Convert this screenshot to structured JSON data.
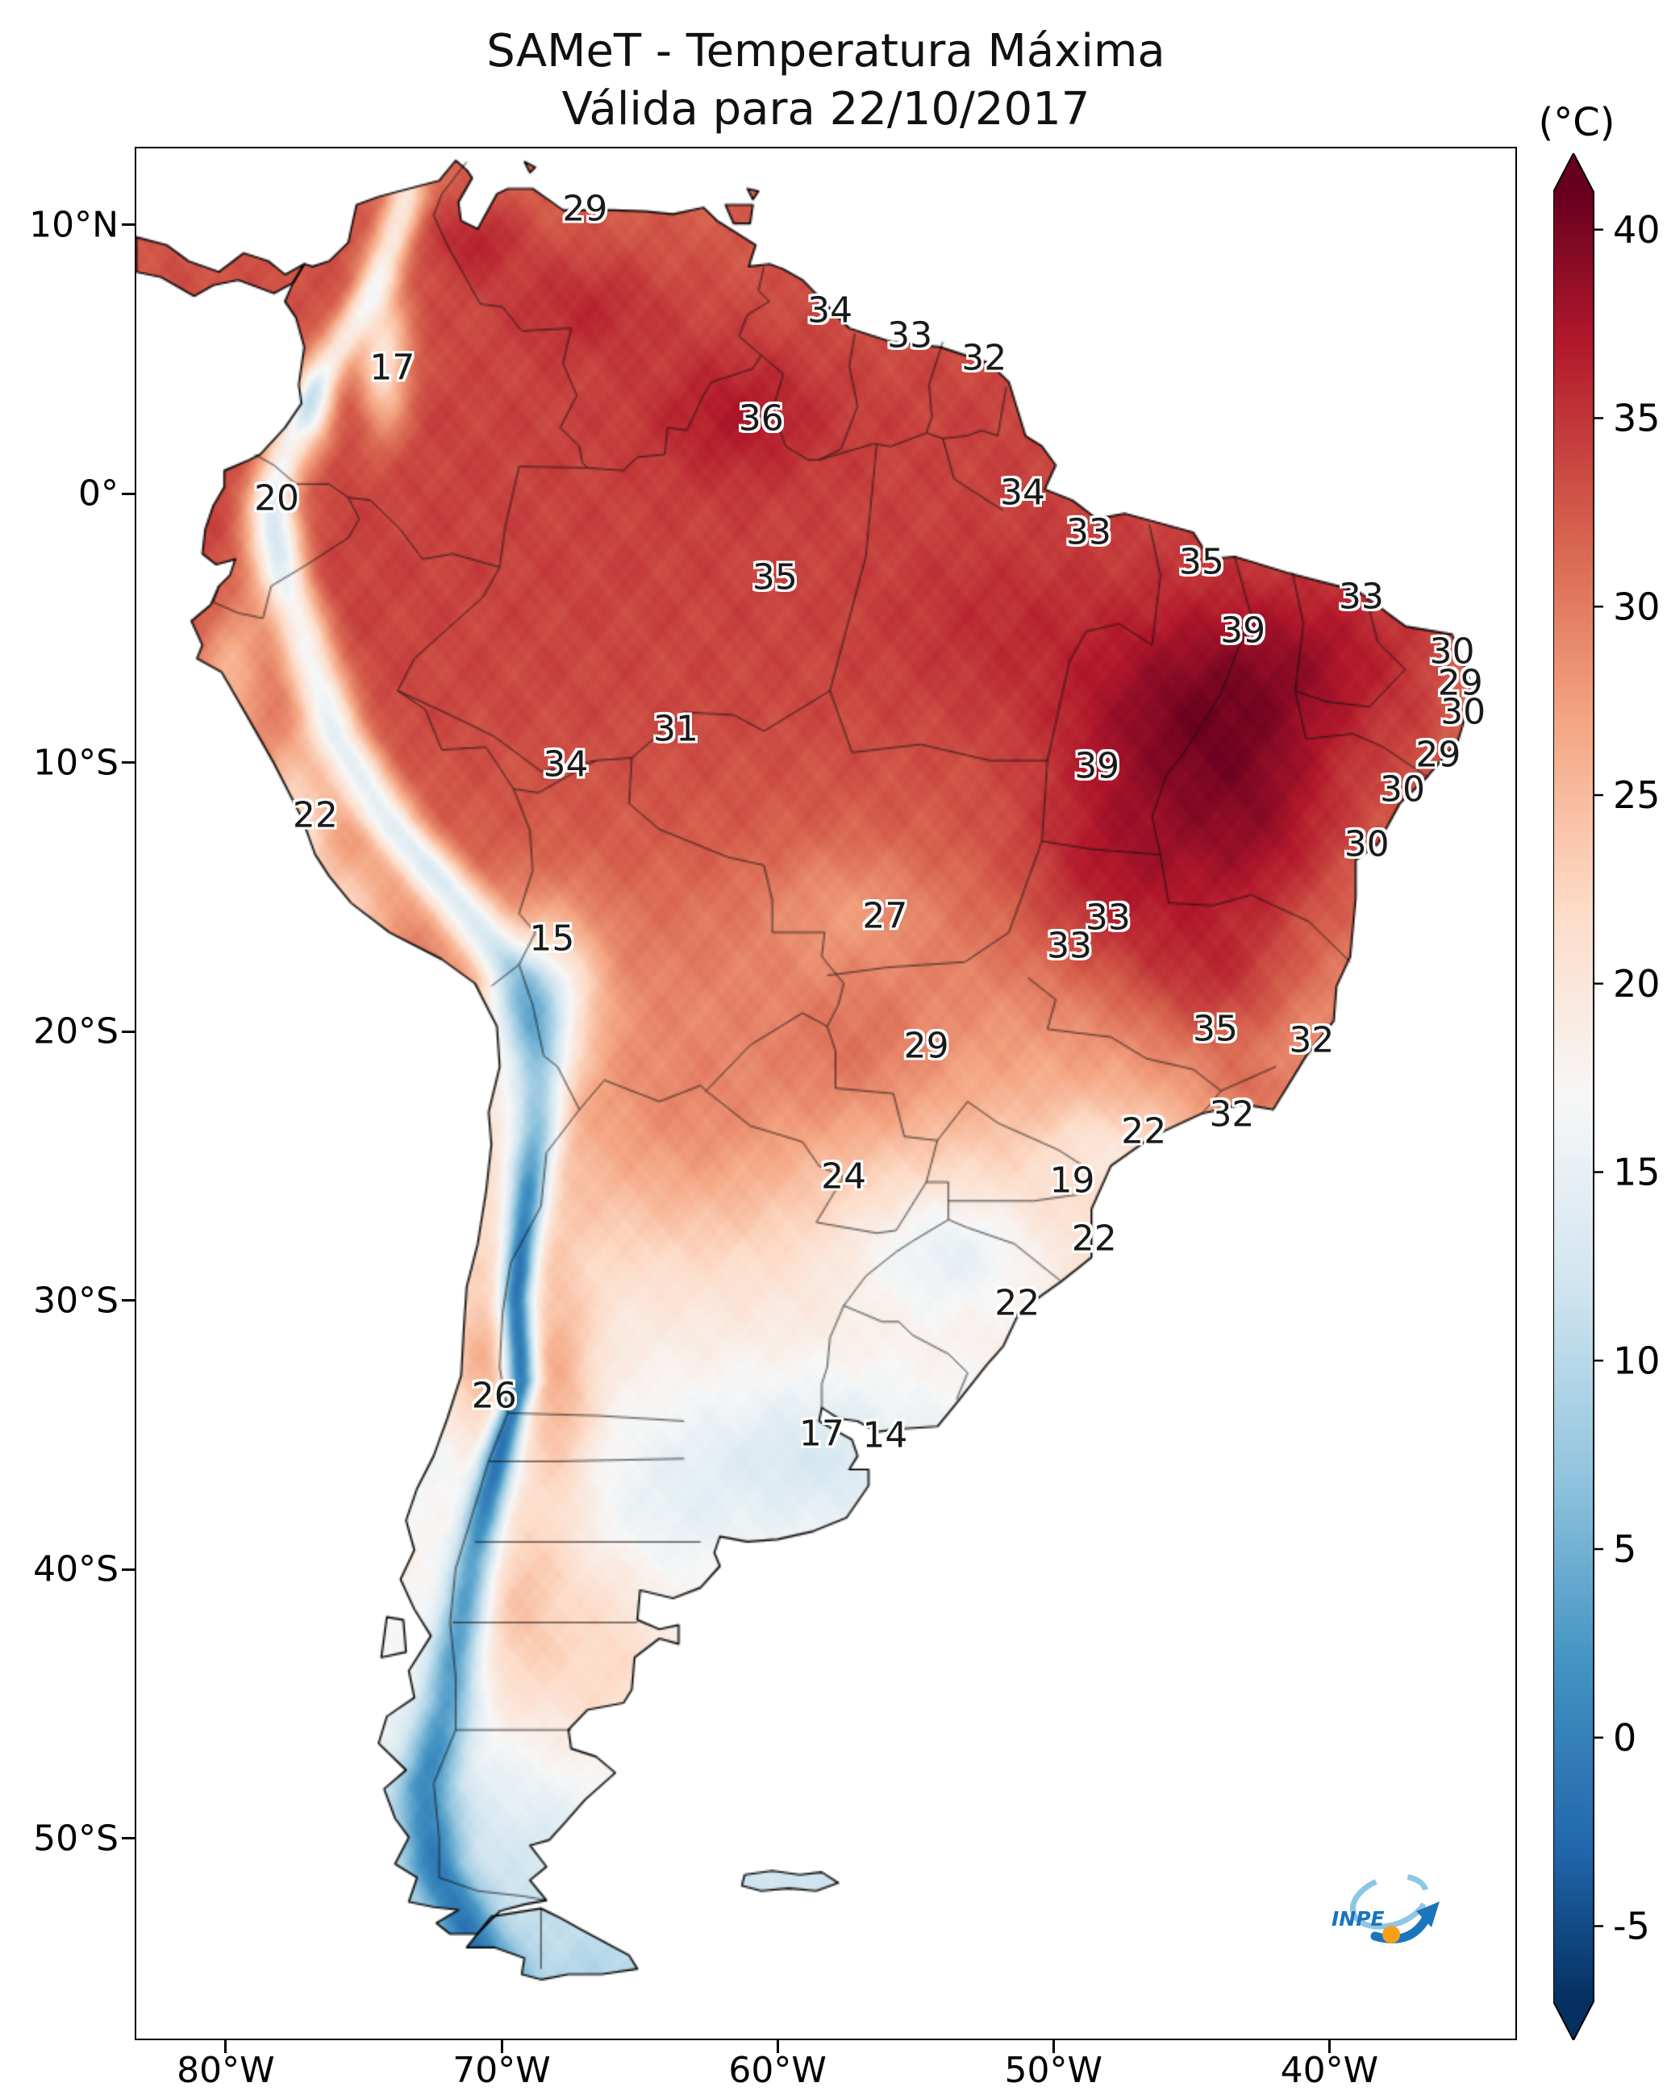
{
  "title": {
    "line1": "SAMeT - Temperatura Máxima",
    "line2": "Válida para 22/10/2017"
  },
  "colorbar": {
    "unit": "(°C)",
    "ticks": [
      40,
      35,
      30,
      25,
      20,
      15,
      10,
      5,
      0,
      -5
    ],
    "vmin": -8,
    "vmax": 42,
    "colormap": [
      [
        "#053061",
        0.0
      ],
      [
        "#2166ac",
        0.1
      ],
      [
        "#4393c3",
        0.2
      ],
      [
        "#92c5de",
        0.3
      ],
      [
        "#d1e5f0",
        0.4
      ],
      [
        "#f7f7f7",
        0.5
      ],
      [
        "#fddbc7",
        0.6
      ],
      [
        "#f4a582",
        0.7
      ],
      [
        "#d6604d",
        0.8
      ],
      [
        "#b2182b",
        0.9
      ],
      [
        "#67001f",
        1.0
      ]
    ]
  },
  "axes": {
    "extent": {
      "lon_min": -83.3,
      "lon_max": -33.2,
      "lat_min": -57.5,
      "lat_max": 12.9
    },
    "lat_ticks": [
      {
        "label": "10°N",
        "lat": 10
      },
      {
        "label": "0°",
        "lat": 0
      },
      {
        "label": "10°S",
        "lat": -10
      },
      {
        "label": "20°S",
        "lat": -20
      },
      {
        "label": "30°S",
        "lat": -30
      },
      {
        "label": "40°S",
        "lat": -40
      },
      {
        "label": "50°S",
        "lat": -50
      }
    ],
    "lon_ticks": [
      {
        "label": "80°W",
        "lon": -80
      },
      {
        "label": "70°W",
        "lon": -70
      },
      {
        "label": "60°W",
        "lon": -60
      },
      {
        "label": "50°W",
        "lon": -50
      },
      {
        "label": "40°W",
        "lon": -40
      }
    ]
  },
  "logo": {
    "text": "INPE"
  },
  "chart_data": {
    "type": "heatmap",
    "title": "SAMeT - Temperatura Máxima",
    "subtitle": "Válida para 22/10/2017",
    "unit": "°C",
    "region": "South America",
    "colorbar_ticks": [
      40,
      35,
      30,
      25,
      20,
      15,
      10,
      5,
      0,
      -5
    ],
    "legend_position": "right",
    "point_labels": [
      {
        "value": 29,
        "lon": -67.0,
        "lat": 10.65
      },
      {
        "value": 34,
        "lon": -58.1,
        "lat": 6.85
      },
      {
        "value": 33,
        "lon": -55.2,
        "lat": 5.93
      },
      {
        "value": 32,
        "lon": -52.5,
        "lat": 5.08
      },
      {
        "value": 17,
        "lon": -74.0,
        "lat": 4.73
      },
      {
        "value": 36,
        "lon": -60.6,
        "lat": 2.83
      },
      {
        "value": 20,
        "lon": -78.2,
        "lat": -0.12
      },
      {
        "value": 34,
        "lon": -51.1,
        "lat": 0.09
      },
      {
        "value": 33,
        "lon": -48.7,
        "lat": -1.39
      },
      {
        "value": 35,
        "lon": -60.1,
        "lat": -3.08
      },
      {
        "value": 35,
        "lon": -44.6,
        "lat": -2.52
      },
      {
        "value": 33,
        "lon": -38.8,
        "lat": -3.79
      },
      {
        "value": 39,
        "lon": -43.1,
        "lat": -5.05
      },
      {
        "value": 30,
        "lon": -35.5,
        "lat": -5.83
      },
      {
        "value": 29,
        "lon": -35.2,
        "lat": -7.02
      },
      {
        "value": 30,
        "lon": -35.1,
        "lat": -8.08
      },
      {
        "value": 31,
        "lon": -63.7,
        "lat": -8.71
      },
      {
        "value": 34,
        "lon": -67.7,
        "lat": -10.05
      },
      {
        "value": 39,
        "lon": -48.4,
        "lat": -10.12
      },
      {
        "value": 29,
        "lon": -36.0,
        "lat": -9.7
      },
      {
        "value": 30,
        "lon": -37.3,
        "lat": -10.97
      },
      {
        "value": 22,
        "lon": -76.8,
        "lat": -11.95
      },
      {
        "value": 30,
        "lon": -38.6,
        "lat": -13.01
      },
      {
        "value": 27,
        "lon": -56.1,
        "lat": -15.68
      },
      {
        "value": 33,
        "lon": -48.0,
        "lat": -15.75
      },
      {
        "value": 33,
        "lon": -49.4,
        "lat": -16.81
      },
      {
        "value": 15,
        "lon": -68.2,
        "lat": -16.53
      },
      {
        "value": 35,
        "lon": -44.1,
        "lat": -19.91
      },
      {
        "value": 32,
        "lon": -40.6,
        "lat": -20.33
      },
      {
        "value": 29,
        "lon": -54.6,
        "lat": -20.54
      },
      {
        "value": 22,
        "lon": -46.7,
        "lat": -23.71
      },
      {
        "value": 32,
        "lon": -43.5,
        "lat": -23.08
      },
      {
        "value": 24,
        "lon": -57.6,
        "lat": -25.4
      },
      {
        "value": 19,
        "lon": -49.3,
        "lat": -25.54
      },
      {
        "value": 22,
        "lon": -48.5,
        "lat": -27.72
      },
      {
        "value": 22,
        "lon": -51.3,
        "lat": -30.11
      },
      {
        "value": 26,
        "lon": -70.3,
        "lat": -33.56
      },
      {
        "value": 17,
        "lon": -58.4,
        "lat": -34.97
      },
      {
        "value": 14,
        "lon": -56.1,
        "lat": -35.04
      }
    ]
  }
}
